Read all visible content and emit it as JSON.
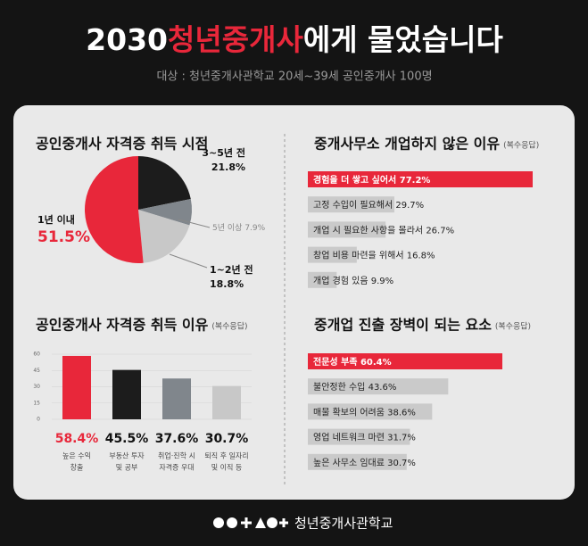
{
  "header": {
    "title": [
      "2030",
      "청년중개사",
      "에게 물었습니다"
    ],
    "subtitle": "대상 : 청년중개사관학교 20세~39세 공인중개사 100명"
  },
  "chart_data": [
    {
      "type": "pie",
      "title": "공인중개사 자격증 취득 시점",
      "categories": [
        "3~5년 전",
        "5년 이상",
        "1~2년 전",
        "1년 이내"
      ],
      "values": [
        21.8,
        7.9,
        18.8,
        51.5
      ],
      "value_labels": [
        "21.8%",
        "7.9%",
        "18.8%",
        "51.5%"
      ],
      "colors": [
        "#1c1c1c",
        "#80868c",
        "#c8c8c8",
        "#e8273a"
      ]
    },
    {
      "type": "bar",
      "title": "공인중개사 자격증 취득 이유",
      "subtitle": "(복수응답)",
      "categories": [
        [
          "높은 수익",
          "창출"
        ],
        [
          "부동산 투자",
          "및 공부"
        ],
        [
          "취업·진학 시",
          "자격증 우대"
        ],
        [
          "퇴직 후 일자리",
          "및 이직 등"
        ]
      ],
      "values": [
        58.4,
        45.5,
        37.6,
        30.7
      ],
      "value_labels": [
        "58.4%",
        "45.5%",
        "37.6%",
        "30.7%"
      ],
      "colors": [
        "#e8273a",
        "#1c1c1c",
        "#80868c",
        "#c8c8c8"
      ],
      "ylim": [
        0,
        60
      ],
      "yticks": [
        0,
        15,
        30,
        45,
        60
      ],
      "grid": true
    },
    {
      "type": "hbar",
      "title": "중개사무소 개업하지 않은 이유",
      "subtitle": "(복수응답)",
      "categories": [
        "경험을 더 쌓고 싶어서",
        "고정 수입이 필요해서",
        "개업 시 필요한 사항을 몰라서",
        "창업 비용 마련을 위해서",
        "개업 경험 있음"
      ],
      "values": [
        77.2,
        29.7,
        26.7,
        16.8,
        9.9
      ],
      "value_labels": [
        "77.2%",
        "29.7%",
        "26.7%",
        "16.8%",
        "9.9%"
      ],
      "colors": [
        "#e8273a",
        "#cacaca",
        "#cacaca",
        "#cacaca",
        "#cacaca"
      ]
    },
    {
      "type": "hbar",
      "title": "중개업 진출 장벽이 되는 요소",
      "subtitle": "(복수응답)",
      "categories": [
        "전문성 부족",
        "불안정한 수입",
        "매물 확보의 어려움",
        "영업 네트워크 마련",
        "높은 사무소 임대료"
      ],
      "values": [
        60.4,
        43.6,
        38.6,
        31.7,
        30.7
      ],
      "value_labels": [
        "60.4%",
        "43.6%",
        "38.6%",
        "31.7%",
        "30.7%"
      ],
      "colors": [
        "#e8273a",
        "#cacaca",
        "#cacaca",
        "#cacaca",
        "#cacaca"
      ]
    }
  ],
  "footer": {
    "org": "청년중개사관학교"
  }
}
